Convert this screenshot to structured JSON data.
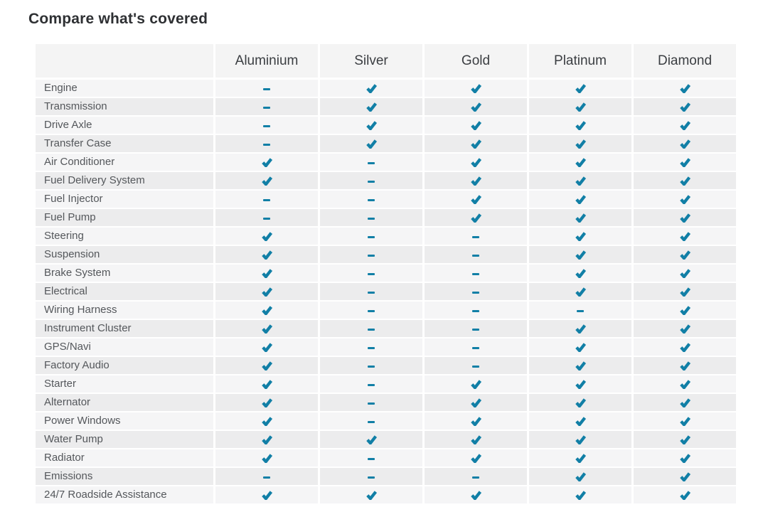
{
  "title": "Compare what's covered",
  "colors": {
    "accent_teal": "#117fa6",
    "header_bg": "#f4f4f4",
    "row_light": "#f5f5f6",
    "row_dark": "#ececed",
    "title_text": "#2e3033",
    "header_text": "#3b3e42",
    "label_text": "#54575b"
  },
  "icons": {
    "covered": "check-icon",
    "not_covered": "dash-icon"
  },
  "table": {
    "corner_label": "",
    "columns": [
      "Aluminium",
      "Silver",
      "Gold",
      "Platinum",
      "Diamond"
    ],
    "rows": [
      {
        "label": "Engine",
        "coverage": [
          "dash",
          "check",
          "check",
          "check",
          "check"
        ]
      },
      {
        "label": "Transmission",
        "coverage": [
          "dash",
          "check",
          "check",
          "check",
          "check"
        ]
      },
      {
        "label": "Drive Axle",
        "coverage": [
          "dash",
          "check",
          "check",
          "check",
          "check"
        ]
      },
      {
        "label": "Transfer Case",
        "coverage": [
          "dash",
          "check",
          "check",
          "check",
          "check"
        ]
      },
      {
        "label": "Air Conditioner",
        "coverage": [
          "check",
          "dash",
          "check",
          "check",
          "check"
        ]
      },
      {
        "label": "Fuel Delivery System",
        "coverage": [
          "check",
          "dash",
          "check",
          "check",
          "check"
        ]
      },
      {
        "label": "Fuel Injector",
        "coverage": [
          "dash",
          "dash",
          "check",
          "check",
          "check"
        ]
      },
      {
        "label": "Fuel Pump",
        "coverage": [
          "dash",
          "dash",
          "check",
          "check",
          "check"
        ]
      },
      {
        "label": "Steering",
        "coverage": [
          "check",
          "dash",
          "dash",
          "check",
          "check"
        ]
      },
      {
        "label": "Suspension",
        "coverage": [
          "check",
          "dash",
          "dash",
          "check",
          "check"
        ]
      },
      {
        "label": "Brake System",
        "coverage": [
          "check",
          "dash",
          "dash",
          "check",
          "check"
        ]
      },
      {
        "label": "Electrical",
        "coverage": [
          "check",
          "dash",
          "dash",
          "check",
          "check"
        ]
      },
      {
        "label": "Wiring Harness",
        "coverage": [
          "check",
          "dash",
          "dash",
          "dash",
          "check"
        ]
      },
      {
        "label": "Instrument Cluster",
        "coverage": [
          "check",
          "dash",
          "dash",
          "check",
          "check"
        ]
      },
      {
        "label": "GPS/Navi",
        "coverage": [
          "check",
          "dash",
          "dash",
          "check",
          "check"
        ]
      },
      {
        "label": "Factory Audio",
        "coverage": [
          "check",
          "dash",
          "dash",
          "check",
          "check"
        ]
      },
      {
        "label": "Starter",
        "coverage": [
          "check",
          "dash",
          "check",
          "check",
          "check"
        ]
      },
      {
        "label": "Alternator",
        "coverage": [
          "check",
          "dash",
          "check",
          "check",
          "check"
        ]
      },
      {
        "label": "Power Windows",
        "coverage": [
          "check",
          "dash",
          "check",
          "check",
          "check"
        ]
      },
      {
        "label": "Water Pump",
        "coverage": [
          "check",
          "check",
          "check",
          "check",
          "check"
        ]
      },
      {
        "label": "Radiator",
        "coverage": [
          "check",
          "dash",
          "check",
          "check",
          "check"
        ]
      },
      {
        "label": "Emissions",
        "coverage": [
          "dash",
          "dash",
          "dash",
          "check",
          "check"
        ]
      },
      {
        "label": "24/7 Roadside Assistance",
        "coverage": [
          "check",
          "check",
          "check",
          "check",
          "check"
        ]
      }
    ]
  }
}
